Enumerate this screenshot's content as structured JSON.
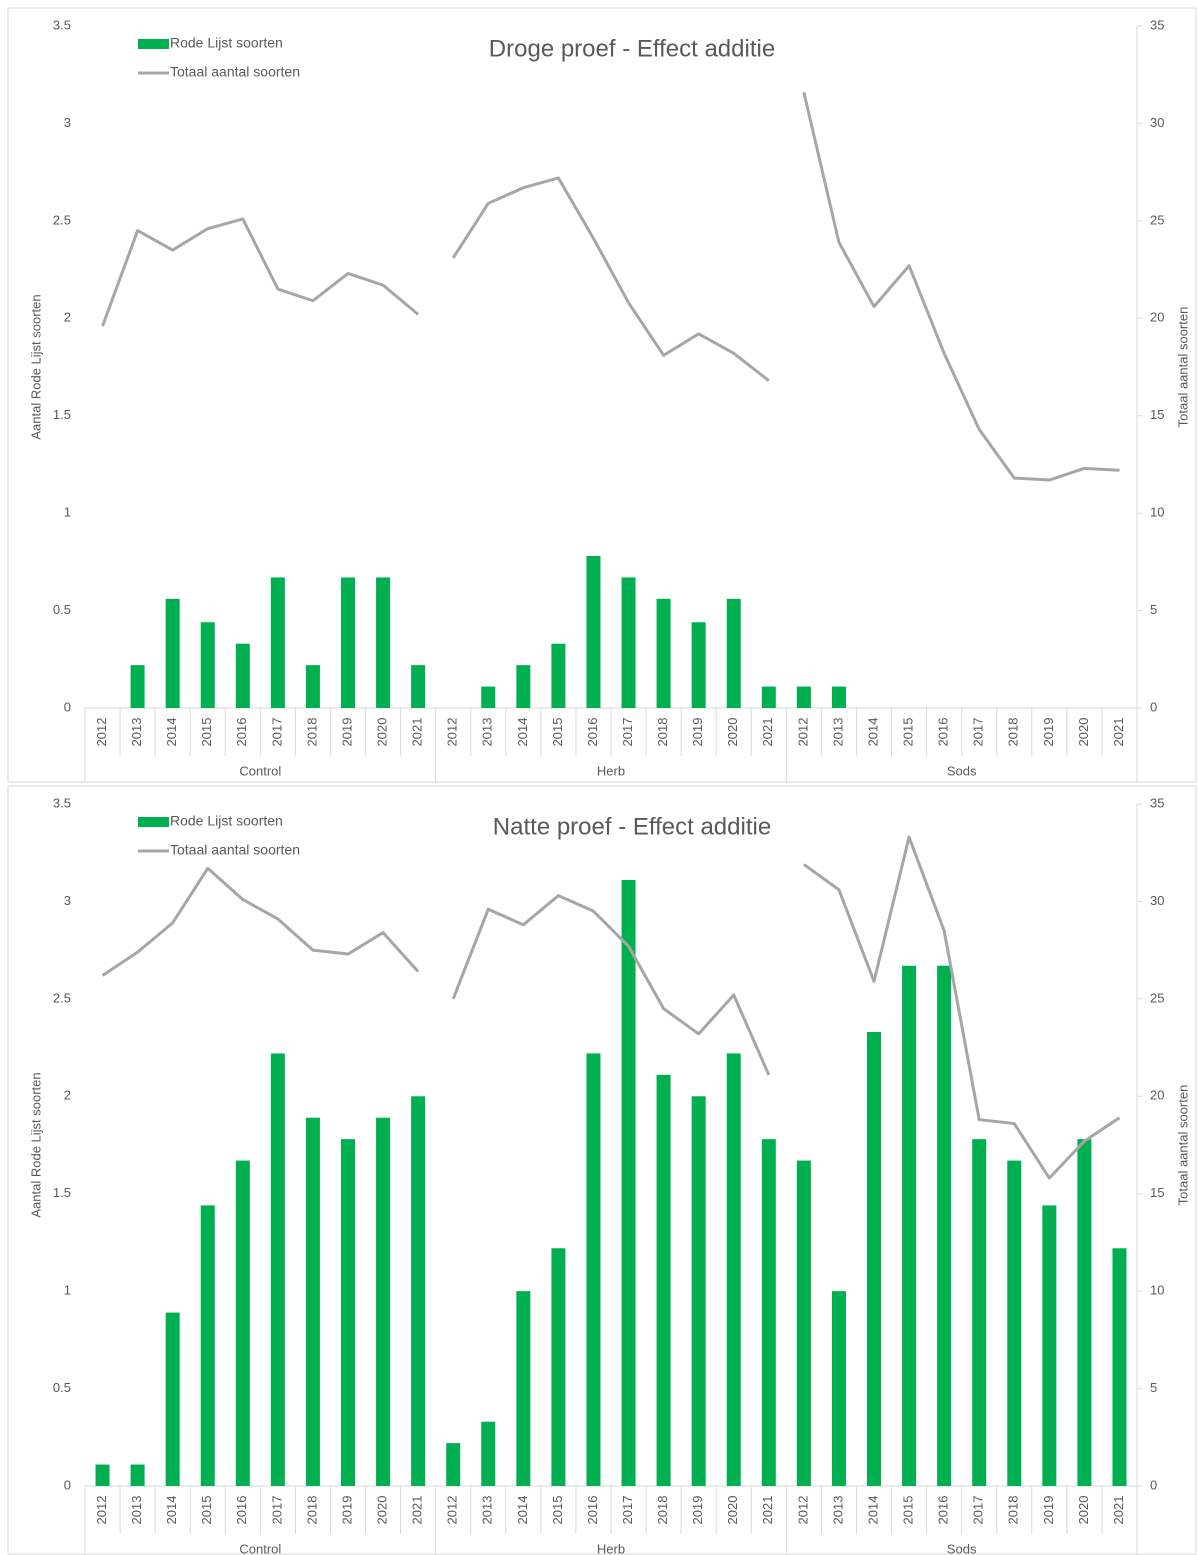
{
  "chart_data": [
    {
      "type": "bar-line",
      "title": "Droge proef - Effect additie",
      "y_label": "Aantal Rode Lijst soorten",
      "y2_label": "Totaal aantal soorten",
      "groups": [
        "Control",
        "Herb",
        "Sods"
      ],
      "categories": [
        [
          "2012",
          "2013",
          "2014",
          "2015",
          "2016",
          "2017",
          "2018",
          "2019",
          "2020",
          "2021"
        ],
        [
          "2012",
          "2013",
          "2014",
          "2015",
          "2016",
          "2017",
          "2018",
          "2019",
          "2020",
          "2021"
        ],
        [
          "2012",
          "2013",
          "2014",
          "2015",
          "2016",
          "2017",
          "2018",
          "2019",
          "2020",
          "2021"
        ]
      ],
      "series": [
        {
          "name": "Rode Lijst soorten",
          "color": "#00b050",
          "type": "bar",
          "values": [
            [
              0,
              0.22,
              0.56,
              0.44,
              0.33,
              0.67,
              0.22,
              0.67,
              0.67,
              0.22
            ],
            [
              0,
              0.11,
              0.22,
              0.33,
              0.78,
              0.67,
              0.56,
              0.44,
              0.56,
              0.11
            ],
            [
              0.11,
              0.11,
              0,
              0,
              0,
              0,
              0,
              0,
              0,
              0
            ]
          ]
        },
        {
          "name": "Totaal aantal soorten",
          "color": "#a6a6a6",
          "type": "line",
          "axis": "y2",
          "values": [
            [
              19.6,
              24.5,
              23.5,
              24.6,
              25.1,
              21.5,
              20.9,
              22.3,
              21.7,
              20.2
            ],
            [
              23.1,
              25.9,
              26.7,
              27.2,
              24.1,
              20.8,
              18.1,
              19.2,
              18.2,
              16.8
            ],
            [
              31.6,
              23.9,
              20.6,
              22.7,
              18.2,
              14.3,
              11.8,
              11.7,
              12.3,
              12.2
            ]
          ]
        }
      ],
      "ylim": [
        0,
        3.5
      ],
      "yticks": [
        0,
        0.5,
        1,
        1.5,
        2,
        2.5,
        3,
        3.5
      ],
      "y2lim": [
        0,
        35
      ],
      "y2ticks": [
        0,
        5,
        10,
        15,
        20,
        25,
        30,
        35
      ],
      "legend": "upper left"
    },
    {
      "type": "bar-line",
      "title": "Natte proef - Effect additie",
      "y_label": "Aantal Rode Lijst soorten",
      "y2_label": "Totaal aantal soorten",
      "groups": [
        "Control",
        "Herb",
        "Sods"
      ],
      "categories": [
        [
          "2012",
          "2013",
          "2014",
          "2015",
          "2016",
          "2017",
          "2018",
          "2019",
          "2020",
          "2021"
        ],
        [
          "2012",
          "2013",
          "2014",
          "2015",
          "2016",
          "2017",
          "2018",
          "2019",
          "2020",
          "2021"
        ],
        [
          "2012",
          "2013",
          "2014",
          "2015",
          "2016",
          "2017",
          "2018",
          "2019",
          "2020",
          "2021"
        ]
      ],
      "series": [
        {
          "name": "Rode Lijst soorten",
          "color": "#00b050",
          "type": "bar",
          "values": [
            [
              0.11,
              0.11,
              0.89,
              1.44,
              1.67,
              2.22,
              1.89,
              1.78,
              1.89,
              2.0
            ],
            [
              0.22,
              0.33,
              1.0,
              1.22,
              2.22,
              3.11,
              2.11,
              2.0,
              2.22,
              1.78
            ],
            [
              1.67,
              1.0,
              2.33,
              2.67,
              2.67,
              1.78,
              1.67,
              1.44,
              1.78,
              1.22
            ]
          ]
        },
        {
          "name": "Totaal aantal soorten",
          "color": "#a6a6a6",
          "type": "line",
          "axis": "y2",
          "values": [
            [
              26.2,
              27.4,
              28.9,
              31.7,
              30.1,
              29.1,
              27.5,
              27.3,
              28.4,
              26.4
            ],
            [
              25.0,
              29.6,
              28.8,
              30.3,
              29.5,
              27.7,
              24.5,
              23.2,
              25.2,
              21.1
            ],
            [
              31.9,
              30.6,
              25.9,
              33.3,
              28.5,
              18.8,
              18.6,
              15.8,
              17.7,
              18.9
            ]
          ]
        }
      ],
      "ylim": [
        0,
        3.5
      ],
      "yticks": [
        0,
        0.5,
        1,
        1.5,
        2,
        2.5,
        3,
        3.5
      ],
      "y2lim": [
        0,
        35
      ],
      "y2ticks": [
        0,
        5,
        10,
        15,
        20,
        25,
        30,
        35
      ],
      "legend": "upper left"
    }
  ]
}
